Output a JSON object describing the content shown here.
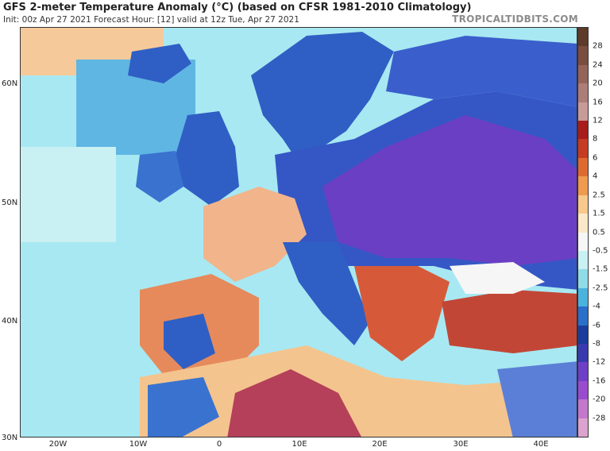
{
  "header": {
    "title": "GFS 2-meter Temperature Anomaly (°C) (based on CFSR 1981-2010 Climatology)",
    "subtitle": "Init: 00z Apr 27 2021   Forecast Hour: [12]   valid at 12z Tue, Apr 27 2021",
    "brand": "TROPICALTIDBITS.COM"
  },
  "axes": {
    "lat_labels": [
      "60N",
      "50N",
      "40N",
      "30N"
    ],
    "lon_labels": [
      "20W",
      "10W",
      "0",
      "10E",
      "20E",
      "30E",
      "40E"
    ]
  },
  "colorbar": {
    "labels": [
      "28",
      "24",
      "20",
      "16",
      "12",
      "8",
      "6",
      "4",
      "2.5",
      "1.5",
      "0.5",
      "-0.5",
      "-1.5",
      "-2.5",
      "-4",
      "-6",
      "-8",
      "-12",
      "-16",
      "-20",
      "-28"
    ],
    "colors": [
      "#5e3a28",
      "#7a4d3e",
      "#94635a",
      "#ad7d78",
      "#c69b99",
      "#a81c1c",
      "#c63c22",
      "#de6a30",
      "#ef9a4e",
      "#f7c98d",
      "#fbe8c8",
      "#f6f6f6",
      "#c9f0f2",
      "#8fdbe6",
      "#4ab3dd",
      "#2a6fc9",
      "#1a3c9c",
      "#3a3ab0",
      "#6f3fc8",
      "#9a4ccf",
      "#c477cc",
      "#dba3cd"
    ]
  },
  "map": {
    "ocean_color": "#a8e8f2",
    "land_cold_color": "#2f5fc4",
    "land_very_cold_color": "#6a3fc4",
    "land_warm_color": "#e9905a",
    "land_hot_color": "#b23a3a"
  }
}
